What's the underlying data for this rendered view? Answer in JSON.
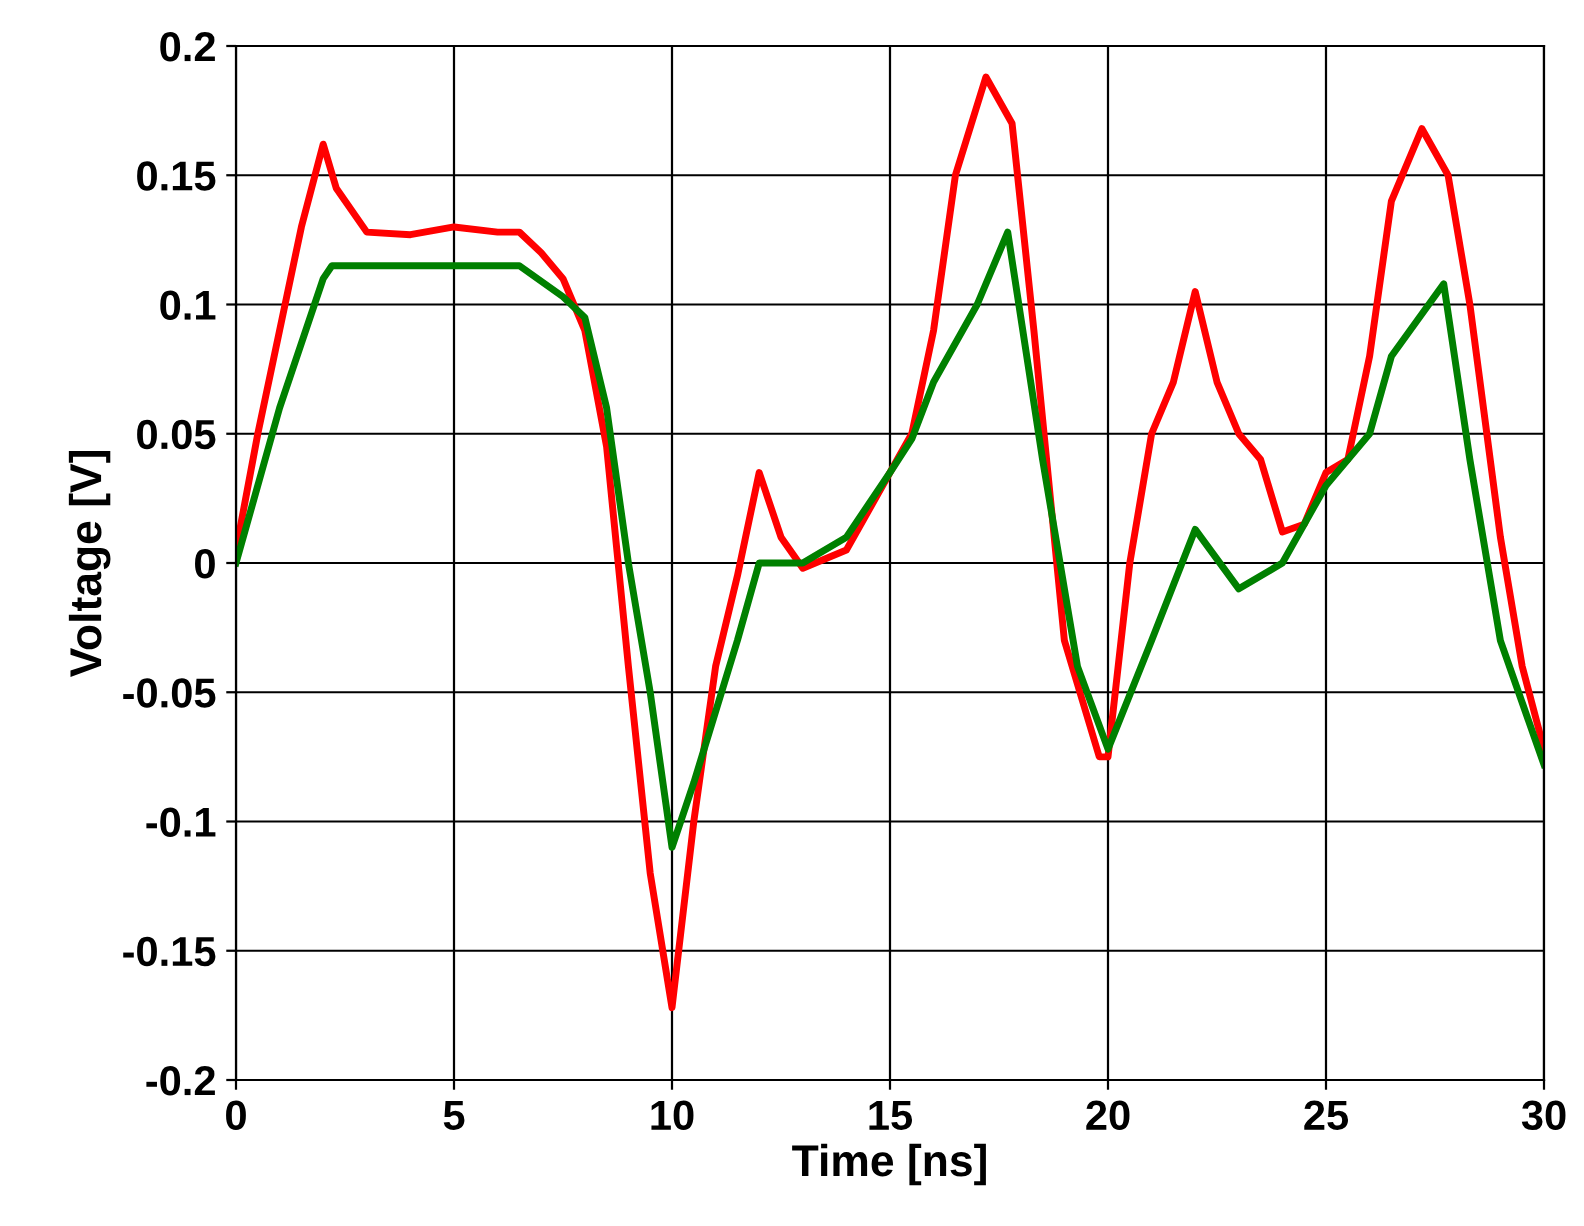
{
  "chart_data": {
    "type": "line",
    "xlabel": "Time [ns]",
    "ylabel": "Voltage [V]",
    "xlim": [
      0,
      30
    ],
    "xticks": [
      0,
      5,
      10,
      15,
      20,
      25,
      30
    ],
    "ylim": [
      -0.2,
      0.2
    ],
    "yticks": [
      -0.2,
      -0.15,
      -0.1,
      -0.05,
      0,
      0.05,
      0.1,
      0.15,
      0.2
    ],
    "grid": true,
    "line_style": "solid",
    "series": [
      {
        "color": "#ff0000",
        "x": [
          0,
          0.5,
          1,
          1.5,
          2,
          2.3,
          3,
          4,
          5,
          6,
          6.5,
          7,
          7.5,
          8,
          8.5,
          9,
          9.5,
          10,
          10.5,
          11,
          11.5,
          12,
          12.5,
          13,
          14,
          14.5,
          15,
          15.5,
          16,
          16.5,
          17.2,
          17.8,
          18.3,
          19,
          19.8,
          20,
          20.5,
          21,
          21.5,
          22,
          22.5,
          23,
          23.5,
          24,
          24.5,
          25,
          25.5,
          26,
          26.5,
          27.2,
          27.8,
          28.3,
          29,
          29.5,
          30
        ],
        "values": [
          0.005,
          0.05,
          0.09,
          0.13,
          0.162,
          0.145,
          0.128,
          0.127,
          0.13,
          0.128,
          0.128,
          0.12,
          0.11,
          0.09,
          0.045,
          -0.04,
          -0.12,
          -0.172,
          -0.1,
          -0.04,
          -0.005,
          0.035,
          0.01,
          -0.002,
          0.005,
          0.02,
          0.035,
          0.05,
          0.09,
          0.15,
          0.188,
          0.17,
          0.09,
          -0.03,
          -0.075,
          -0.075,
          0.0,
          0.05,
          0.07,
          0.105,
          0.07,
          0.05,
          0.04,
          0.012,
          0.015,
          0.035,
          0.04,
          0.08,
          0.14,
          0.168,
          0.15,
          0.1,
          0.01,
          -0.04,
          -0.072
        ]
      },
      {
        "color": "#008000",
        "x": [
          0,
          1,
          2,
          2.2,
          6.5,
          7.5,
          8,
          8.5,
          9,
          9.5,
          10,
          10.5,
          11.5,
          12,
          13,
          14,
          15,
          15.5,
          16,
          17,
          17.7,
          18.5,
          19.3,
          20,
          21,
          22,
          23,
          24,
          25,
          26,
          26.5,
          27.7,
          28.3,
          29,
          30
        ],
        "values": [
          0,
          0.06,
          0.11,
          0.115,
          0.115,
          0.103,
          0.095,
          0.06,
          0.0,
          -0.05,
          -0.11,
          -0.085,
          -0.03,
          0,
          0,
          0.01,
          0.035,
          0.048,
          0.07,
          0.1,
          0.128,
          0.04,
          -0.04,
          -0.072,
          -0.03,
          0.013,
          -0.01,
          0.0,
          0.03,
          0.05,
          0.08,
          0.108,
          0.04,
          -0.03,
          -0.078
        ]
      }
    ]
  }
}
